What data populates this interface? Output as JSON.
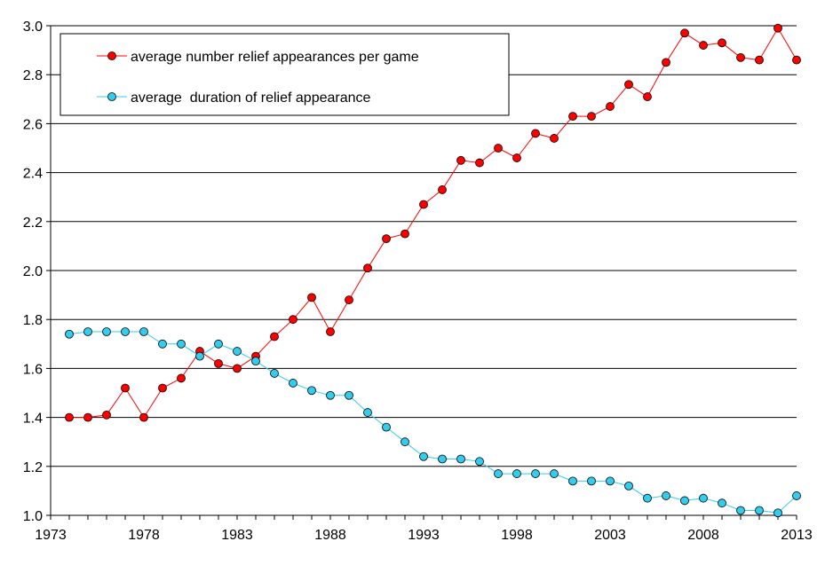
{
  "chart_data": {
    "type": "line",
    "title": "",
    "xlabel": "",
    "ylabel": "",
    "xlim": [
      1973,
      2013
    ],
    "ylim": [
      1.0,
      3.0
    ],
    "x_ticks": [
      "1973",
      "1978",
      "1983",
      "1988",
      "1993",
      "1998",
      "2003",
      "2008",
      "2013"
    ],
    "y_ticks": [
      "1.0",
      "1.2",
      "1.4",
      "1.6",
      "1.8",
      "2.0",
      "2.2",
      "2.4",
      "2.6",
      "2.8",
      "3.0"
    ],
    "grid": "horizontal",
    "legend_position": "top-left",
    "x": [
      1974,
      1975,
      1976,
      1977,
      1978,
      1979,
      1980,
      1981,
      1982,
      1983,
      1984,
      1985,
      1986,
      1987,
      1988,
      1989,
      1990,
      1991,
      1992,
      1993,
      1994,
      1995,
      1996,
      1997,
      1998,
      1999,
      2000,
      2001,
      2002,
      2003,
      2004,
      2005,
      2006,
      2007,
      2008,
      2009,
      2010,
      2011,
      2012,
      2013
    ],
    "series": [
      {
        "name": "average number relief appearances per game",
        "color": "#ff0000",
        "values": [
          1.4,
          1.4,
          1.41,
          1.52,
          1.4,
          1.52,
          1.56,
          1.67,
          1.62,
          1.6,
          1.65,
          1.73,
          1.8,
          1.89,
          1.75,
          1.88,
          2.01,
          2.13,
          2.15,
          2.27,
          2.33,
          2.45,
          2.44,
          2.5,
          2.46,
          2.56,
          2.54,
          2.63,
          2.63,
          2.67,
          2.76,
          2.71,
          2.85,
          2.97,
          2.92,
          2.93,
          2.87,
          2.86,
          2.99,
          2.86
        ]
      },
      {
        "name": "average  duration of relief appearance",
        "color": "#33ccee",
        "values": [
          1.74,
          1.75,
          1.75,
          1.75,
          1.75,
          1.7,
          1.7,
          1.65,
          1.7,
          1.67,
          1.63,
          1.58,
          1.54,
          1.51,
          1.49,
          1.49,
          1.42,
          1.36,
          1.3,
          1.24,
          1.23,
          1.23,
          1.22,
          1.17,
          1.17,
          1.17,
          1.17,
          1.14,
          1.14,
          1.14,
          1.12,
          1.07,
          1.08,
          1.06,
          1.07,
          1.05,
          1.02,
          1.02,
          1.01,
          1.08
        ]
      }
    ]
  }
}
